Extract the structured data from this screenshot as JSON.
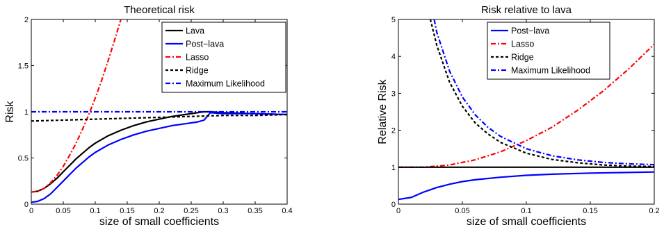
{
  "chart_data": [
    {
      "type": "line",
      "title": "Theoretical risk",
      "xlabel": "size of small coefficients",
      "ylabel": "Risk",
      "xlim": [
        0,
        0.4
      ],
      "ylim": [
        0,
        2
      ],
      "xticks": [
        "0",
        "0.05",
        "0.1",
        "0.15",
        "0.2",
        "0.25",
        "0.3",
        "0.35",
        "0.4"
      ],
      "yticks": [
        "0",
        "0.5",
        "1",
        "1.5",
        "2"
      ],
      "legend_position": "top-right",
      "series": [
        {
          "name": "Lava",
          "color": "#000000",
          "style": "solid",
          "x": [
            0,
            0.01,
            0.02,
            0.03,
            0.04,
            0.05,
            0.06,
            0.07,
            0.08,
            0.09,
            0.1,
            0.12,
            0.14,
            0.16,
            0.18,
            0.2,
            0.22,
            0.24,
            0.26,
            0.27,
            0.28,
            0.3,
            0.35,
            0.4
          ],
          "y": [
            0.13,
            0.14,
            0.17,
            0.22,
            0.28,
            0.35,
            0.42,
            0.49,
            0.55,
            0.61,
            0.66,
            0.74,
            0.8,
            0.85,
            0.89,
            0.92,
            0.95,
            0.97,
            0.99,
            1.0,
            1.0,
            0.99,
            0.98,
            0.97
          ]
        },
        {
          "name": "Post−lava",
          "color": "#0000ff",
          "style": "solid",
          "x": [
            0,
            0.01,
            0.02,
            0.03,
            0.04,
            0.05,
            0.06,
            0.07,
            0.08,
            0.09,
            0.1,
            0.12,
            0.14,
            0.16,
            0.18,
            0.2,
            0.22,
            0.24,
            0.26,
            0.27,
            0.275,
            0.28,
            0.3,
            0.35,
            0.4
          ],
          "y": [
            0.02,
            0.03,
            0.06,
            0.11,
            0.18,
            0.25,
            0.32,
            0.39,
            0.45,
            0.51,
            0.56,
            0.64,
            0.7,
            0.75,
            0.79,
            0.82,
            0.85,
            0.87,
            0.89,
            0.91,
            0.95,
            0.99,
            0.98,
            0.98,
            0.97
          ]
        },
        {
          "name": "Lasso",
          "color": "#ff0000",
          "style": "dashdot",
          "x": [
            0,
            0.01,
            0.02,
            0.03,
            0.04,
            0.05,
            0.06,
            0.07,
            0.08,
            0.09,
            0.1,
            0.11,
            0.12,
            0.13,
            0.14
          ],
          "y": [
            0.13,
            0.14,
            0.17,
            0.23,
            0.31,
            0.41,
            0.53,
            0.66,
            0.81,
            0.97,
            1.15,
            1.34,
            1.55,
            1.77,
            2.0
          ]
        },
        {
          "name": "Ridge",
          "color": "#000000",
          "style": "dashed",
          "x": [
            0,
            0.05,
            0.1,
            0.15,
            0.2,
            0.25,
            0.3,
            0.35,
            0.4
          ],
          "y": [
            0.9,
            0.91,
            0.92,
            0.93,
            0.94,
            0.95,
            0.96,
            0.96,
            0.97
          ]
        },
        {
          "name": "Maximum Likelihood",
          "color": "#0000ff",
          "style": "dashdot",
          "x": [
            0,
            0.4
          ],
          "y": [
            1.0,
            1.0
          ]
        }
      ]
    },
    {
      "type": "line",
      "title": "Risk relative to lava",
      "xlabel": "size of small coefficients",
      "ylabel": "Relative Risk",
      "xlim": [
        0,
        0.2
      ],
      "ylim": [
        0,
        5
      ],
      "xticks": [
        "0",
        "0.05",
        "0.1",
        "0.15",
        "0.2"
      ],
      "yticks": [
        "0",
        "1",
        "2",
        "3",
        "4",
        "5"
      ],
      "legend_position": "top-center",
      "series": [
        {
          "name": "Post−lava",
          "color": "#0000ff",
          "style": "solid",
          "x": [
            0,
            0.01,
            0.02,
            0.03,
            0.04,
            0.05,
            0.06,
            0.08,
            0.1,
            0.12,
            0.15,
            0.2
          ],
          "y": [
            0.13,
            0.18,
            0.33,
            0.45,
            0.54,
            0.61,
            0.66,
            0.73,
            0.78,
            0.81,
            0.84,
            0.87
          ]
        },
        {
          "name": "Lasso",
          "color": "#ff0000",
          "style": "dashdot",
          "x": [
            0,
            0.02,
            0.04,
            0.06,
            0.08,
            0.1,
            0.12,
            0.14,
            0.16,
            0.18,
            0.2
          ],
          "y": [
            1.0,
            1.0,
            1.06,
            1.2,
            1.42,
            1.72,
            2.08,
            2.54,
            3.06,
            3.66,
            4.33
          ]
        },
        {
          "name": "Ridge",
          "color": "#000000",
          "style": "dashed",
          "x": [
            0.025,
            0.03,
            0.04,
            0.05,
            0.06,
            0.07,
            0.08,
            0.1,
            0.12,
            0.14,
            0.16,
            0.18,
            0.2
          ],
          "y": [
            5.0,
            4.3,
            3.3,
            2.65,
            2.2,
            1.9,
            1.67,
            1.38,
            1.21,
            1.12,
            1.06,
            1.03,
            1.02
          ]
        },
        {
          "name": "Maximum Likelihood",
          "color": "#0000ff",
          "style": "dashdot",
          "x": [
            0.028,
            0.03,
            0.04,
            0.05,
            0.06,
            0.07,
            0.08,
            0.1,
            0.12,
            0.14,
            0.16,
            0.18,
            0.2
          ],
          "y": [
            5.0,
            4.65,
            3.6,
            2.9,
            2.42,
            2.08,
            1.83,
            1.5,
            1.31,
            1.2,
            1.13,
            1.09,
            1.07
          ]
        },
        {
          "name": "",
          "color": "#000000",
          "style": "solid",
          "x": [
            0,
            0.2
          ],
          "y": [
            1.0,
            1.0
          ]
        }
      ]
    }
  ]
}
